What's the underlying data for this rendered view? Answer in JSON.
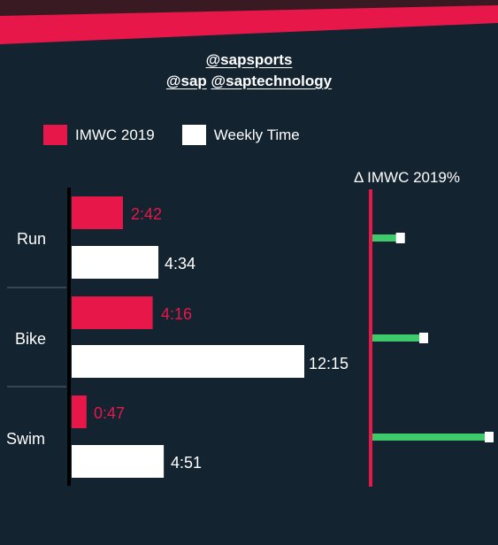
{
  "header": {
    "handle_primary": "@sapsports",
    "handle_sap": "@sap",
    "handle_saptech": "@saptechnology"
  },
  "legend": {
    "items": [
      {
        "label": "IMWC 2019",
        "color": "#e8174a"
      },
      {
        "label": "Weekly Time",
        "color": "#ffffff"
      }
    ]
  },
  "colors": {
    "background": "#132330",
    "accent_red": "#e8174a",
    "bar_white": "#ffffff",
    "delta_green": "#3ec96a",
    "axis": "#000000"
  },
  "chart_data": [
    {
      "type": "bar",
      "orientation": "horizontal",
      "categories": [
        "Run",
        "Bike",
        "Swim"
      ],
      "series": [
        {
          "name": "IMWC 2019",
          "values": [
            2.7,
            4.267,
            0.783
          ],
          "labels": [
            "2:42",
            "4:16",
            "0:47"
          ]
        },
        {
          "name": "Weekly Time",
          "values": [
            4.567,
            12.25,
            4.85
          ],
          "labels": [
            "4:34",
            "12:15",
            "4:51"
          ]
        }
      ],
      "unit": "hours",
      "xlim": [
        0,
        12.25
      ]
    },
    {
      "type": "bar",
      "orientation": "horizontal",
      "title": "Δ IMWC 2019%",
      "categories": [
        "Run",
        "Bike",
        "Swim"
      ],
      "values": [
        169,
        287,
        619
      ],
      "unit": "percent",
      "xlim": [
        0,
        619
      ]
    }
  ]
}
